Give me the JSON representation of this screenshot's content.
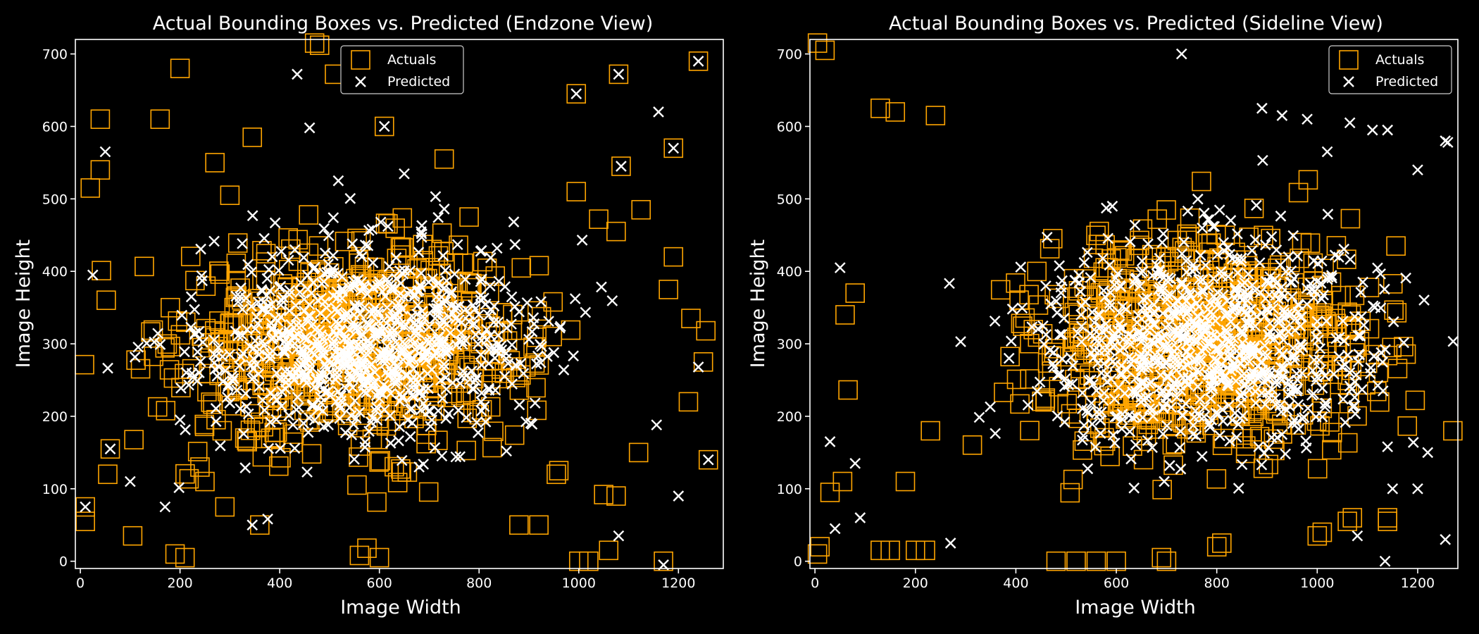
{
  "colors": {
    "background": "#000000",
    "actual": "#FFA500",
    "predicted": "#FFFFFF",
    "axes": "#FFFFFF"
  },
  "chart_data": [
    {
      "type": "scatter",
      "title": "Actual Bounding Boxes vs. Predicted (Endzone View)",
      "xlabel": "Image Width",
      "ylabel": "Image Height",
      "xlim": [
        -10,
        1290
      ],
      "ylim": [
        -10,
        720
      ],
      "xticks": [
        0,
        200,
        400,
        600,
        800,
        1000,
        1200
      ],
      "yticks": [
        0,
        100,
        200,
        300,
        400,
        500,
        600,
        700
      ],
      "legend": {
        "placement": "top-center",
        "entries": [
          "Actuals",
          "Predicted"
        ]
      },
      "series": [
        {
          "name": "Actuals",
          "marker": "square",
          "color": "#FFA500",
          "count": 900,
          "distribution": {
            "center": [
              550,
              300
            ],
            "spread": [
              170,
              65
            ]
          },
          "points": [
            [
              480,
              712
            ],
            [
              1240,
              690
            ],
            [
              1080,
              672
            ],
            [
              995,
              645
            ],
            [
              610,
              600
            ],
            [
              345,
              585
            ],
            [
              1190,
              570
            ],
            [
              1085,
              545
            ],
            [
              730,
              555
            ],
            [
              995,
              510
            ],
            [
              780,
              475
            ],
            [
              1040,
              472
            ],
            [
              1075,
              455
            ],
            [
              1125,
              485
            ],
            [
              1190,
              420
            ],
            [
              1225,
              335
            ],
            [
              1255,
              318
            ],
            [
              1220,
              220
            ],
            [
              1250,
              275
            ],
            [
              1260,
              140
            ],
            [
              1120,
              150
            ],
            [
              1180,
              375
            ],
            [
              470,
              715
            ],
            [
              510,
              672
            ],
            [
              300,
              505
            ],
            [
              270,
              550
            ],
            [
              200,
              680
            ],
            [
              160,
              610
            ],
            [
              40,
              610
            ],
            [
              40,
              540
            ],
            [
              20,
              515
            ],
            [
              55,
              120
            ],
            [
              60,
              155
            ],
            [
              10,
              75
            ],
            [
              10,
              55
            ],
            [
              105,
              35
            ],
            [
              190,
              10
            ],
            [
              210,
              5
            ],
            [
              560,
              8
            ],
            [
              575,
              18
            ],
            [
              600,
              5
            ],
            [
              1000,
              0
            ],
            [
              1020,
              0
            ],
            [
              1170,
              0
            ],
            [
              1060,
              15
            ],
            [
              1050,
              92
            ],
            [
              1075,
              90
            ],
            [
              960,
              125
            ],
            [
              955,
              120
            ],
            [
              880,
              50
            ],
            [
              920,
              50
            ],
            [
              360,
              50
            ],
            [
              290,
              75
            ],
            [
              250,
              110
            ],
            [
              240,
              130
            ],
            [
              330,
              170
            ],
            [
              335,
              165
            ]
          ]
        },
        {
          "name": "Predicted",
          "marker": "x",
          "color": "#FFFFFF",
          "count": 900,
          "distribution": {
            "center": [
              560,
              300
            ],
            "spread": [
              170,
              65
            ]
          },
          "points": [
            [
              1240,
              690
            ],
            [
              1080,
              672
            ],
            [
              995,
              645
            ],
            [
              610,
              600
            ],
            [
              435,
              672
            ],
            [
              460,
              598
            ],
            [
              1160,
              620
            ],
            [
              1190,
              570
            ],
            [
              1085,
              545
            ],
            [
              1240,
              268
            ],
            [
              1260,
              140
            ],
            [
              1200,
              90
            ],
            [
              1170,
              -5
            ],
            [
              1080,
              35
            ],
            [
              170,
              75
            ],
            [
              345,
              50
            ],
            [
              25,
              395
            ],
            [
              50,
              565
            ],
            [
              100,
              110
            ],
            [
              200,
              195
            ],
            [
              60,
              155
            ],
            [
              10,
              75
            ]
          ]
        }
      ]
    },
    {
      "type": "scatter",
      "title": "Actual Bounding Boxes vs. Predicted (Sideline View)",
      "xlabel": "Image Width",
      "ylabel": "Image Height",
      "xlim": [
        -10,
        1280
      ],
      "ylim": [
        -10,
        720
      ],
      "xticks": [
        0,
        200,
        400,
        600,
        800,
        1000,
        1200
      ],
      "yticks": [
        0,
        100,
        200,
        300,
        400,
        500,
        600,
        700
      ],
      "legend": {
        "placement": "top-right",
        "entries": [
          "Actuals",
          "Predicted"
        ]
      },
      "series": [
        {
          "name": "Actuals",
          "marker": "square",
          "color": "#FFA500",
          "count": 900,
          "distribution": {
            "center": [
              770,
              300
            ],
            "spread": [
              160,
              70
            ]
          },
          "points": [
            [
              1270,
              180
            ],
            [
              1195,
              222
            ],
            [
              1140,
              60
            ],
            [
              1140,
              55
            ],
            [
              1010,
              40
            ],
            [
              1000,
              35
            ],
            [
              1070,
              60
            ],
            [
              1060,
              55
            ],
            [
              800,
              20
            ],
            [
              810,
              25
            ],
            [
              690,
              5
            ],
            [
              700,
              0
            ],
            [
              600,
              0
            ],
            [
              560,
              0
            ],
            [
              520,
              0
            ],
            [
              480,
              0
            ],
            [
              220,
              15
            ],
            [
              200,
              15
            ],
            [
              150,
              15
            ],
            [
              130,
              15
            ],
            [
              10,
              20
            ],
            [
              5,
              10
            ],
            [
              30,
              95
            ],
            [
              55,
              110
            ],
            [
              180,
              110
            ],
            [
              230,
              180
            ],
            [
              60,
              340
            ],
            [
              80,
              370
            ],
            [
              20,
              705
            ],
            [
              5,
              715
            ],
            [
              130,
              625
            ],
            [
              160,
              620
            ],
            [
              240,
              615
            ]
          ]
        },
        {
          "name": "Predicted",
          "marker": "x",
          "color": "#FFFFFF",
          "count": 900,
          "distribution": {
            "center": [
              780,
              300
            ],
            "spread": [
              160,
              70
            ]
          },
          "points": [
            [
              730,
              700
            ],
            [
              1255,
              580
            ],
            [
              1260,
              578
            ],
            [
              1200,
              540
            ],
            [
              1140,
              595
            ],
            [
              1110,
              595
            ],
            [
              1065,
              605
            ],
            [
              1020,
              565
            ],
            [
              980,
              610
            ],
            [
              930,
              615
            ],
            [
              890,
              625
            ],
            [
              1140,
              158
            ],
            [
              1150,
              100
            ],
            [
              1200,
              100
            ],
            [
              1220,
              150
            ],
            [
              1255,
              30
            ],
            [
              1135,
              0
            ],
            [
              1080,
              35
            ],
            [
              270,
              25
            ],
            [
              30,
              165
            ],
            [
              50,
              405
            ],
            [
              80,
              135
            ],
            [
              40,
              45
            ],
            [
              90,
              60
            ]
          ]
        }
      ]
    }
  ]
}
